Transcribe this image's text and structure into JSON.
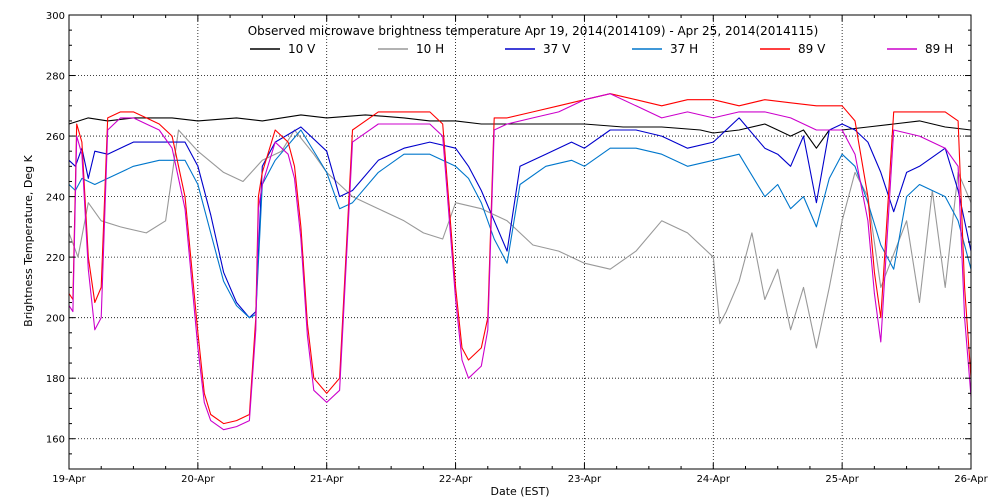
{
  "chart_data": {
    "type": "line",
    "title": "Observed microwave brightness temperature Apr 19, 2014(2014109) - Apr 25, 2014(2014115)",
    "xlabel": "Date (EST)",
    "ylabel": "Brightness Temperature, Deg K",
    "xlim": [
      0,
      7
    ],
    "ylim": [
      150,
      300
    ],
    "x_ticks": [
      {
        "x": 0,
        "label": "19-Apr"
      },
      {
        "x": 1,
        "label": "20-Apr"
      },
      {
        "x": 2,
        "label": "21-Apr"
      },
      {
        "x": 3,
        "label": "22-Apr"
      },
      {
        "x": 4,
        "label": "23-Apr"
      },
      {
        "x": 5,
        "label": "24-Apr"
      },
      {
        "x": 6,
        "label": "25-Apr"
      },
      {
        "x": 7,
        "label": "26-Apr"
      }
    ],
    "y_ticks": [
      160,
      180,
      200,
      220,
      240,
      260,
      280,
      300
    ],
    "grid": true,
    "legend": "top-center",
    "series": [
      {
        "name": "10 V",
        "color": "#000000",
        "x": [
          0,
          0.15,
          0.3,
          0.5,
          0.8,
          1.0,
          1.3,
          1.5,
          1.8,
          2.0,
          2.3,
          2.6,
          2.8,
          3.0,
          3.2,
          3.5,
          3.8,
          4.0,
          4.3,
          4.6,
          4.9,
          5.0,
          5.2,
          5.4,
          5.5,
          5.6,
          5.7,
          5.8,
          5.9,
          6.0,
          6.2,
          6.4,
          6.6,
          6.8,
          7.0
        ],
        "y": [
          264,
          266,
          265,
          266,
          266,
          265,
          266,
          265,
          267,
          266,
          267,
          266,
          265,
          265,
          264,
          264,
          264,
          264,
          263,
          263,
          262,
          261,
          262,
          264,
          262,
          260,
          262,
          256,
          262,
          262,
          263,
          264,
          265,
          263,
          262
        ]
      },
      {
        "name": "10 H",
        "color": "#999999",
        "x": [
          0,
          0.07,
          0.15,
          0.25,
          0.4,
          0.6,
          0.75,
          0.85,
          1.0,
          1.2,
          1.35,
          1.5,
          1.65,
          1.75,
          1.9,
          2.0,
          2.2,
          2.4,
          2.6,
          2.75,
          2.9,
          3.0,
          3.2,
          3.4,
          3.6,
          3.8,
          4.0,
          4.2,
          4.4,
          4.6,
          4.8,
          5.0,
          5.05,
          5.1,
          5.2,
          5.3,
          5.4,
          5.5,
          5.6,
          5.7,
          5.8,
          5.9,
          6.0,
          6.1,
          6.2,
          6.3,
          6.5,
          6.6,
          6.7,
          6.8,
          6.9,
          7.0
        ],
        "y": [
          228,
          220,
          238,
          232,
          230,
          228,
          232,
          262,
          255,
          248,
          245,
          252,
          255,
          262,
          254,
          248,
          240,
          236,
          232,
          228,
          226,
          238,
          236,
          232,
          224,
          222,
          218,
          216,
          222,
          232,
          228,
          220,
          198,
          202,
          212,
          228,
          206,
          216,
          196,
          210,
          190,
          210,
          232,
          248,
          240,
          210,
          232,
          205,
          242,
          210,
          248,
          238
        ]
      },
      {
        "name": "37 V",
        "color": "#0000cc",
        "x": [
          0,
          0.05,
          0.1,
          0.15,
          0.2,
          0.3,
          0.5,
          0.7,
          0.9,
          1.0,
          1.1,
          1.2,
          1.3,
          1.4,
          1.45,
          1.5,
          1.6,
          1.8,
          2.0,
          2.1,
          2.2,
          2.4,
          2.6,
          2.8,
          3.0,
          3.1,
          3.2,
          3.3,
          3.4,
          3.5,
          3.7,
          3.9,
          4.0,
          4.2,
          4.4,
          4.6,
          4.8,
          5.0,
          5.2,
          5.4,
          5.5,
          5.6,
          5.7,
          5.8,
          5.9,
          6.0,
          6.1,
          6.2,
          6.3,
          6.4,
          6.5,
          6.6,
          6.8,
          6.9,
          7.0
        ],
        "y": [
          252,
          250,
          256,
          246,
          255,
          254,
          258,
          258,
          258,
          250,
          234,
          215,
          205,
          200,
          202,
          250,
          258,
          263,
          255,
          240,
          242,
          252,
          256,
          258,
          256,
          250,
          242,
          232,
          222,
          250,
          254,
          258,
          256,
          262,
          262,
          260,
          256,
          258,
          266,
          256,
          254,
          250,
          260,
          238,
          262,
          264,
          262,
          258,
          248,
          235,
          248,
          250,
          256,
          242,
          222
        ]
      },
      {
        "name": "37 H",
        "color": "#0077cc",
        "x": [
          0,
          0.05,
          0.1,
          0.2,
          0.3,
          0.5,
          0.7,
          0.9,
          1.0,
          1.1,
          1.2,
          1.3,
          1.4,
          1.45,
          1.5,
          1.6,
          1.8,
          2.0,
          2.1,
          2.2,
          2.4,
          2.6,
          2.8,
          3.0,
          3.1,
          3.2,
          3.3,
          3.4,
          3.5,
          3.7,
          3.9,
          4.0,
          4.2,
          4.4,
          4.6,
          4.8,
          5.0,
          5.2,
          5.4,
          5.5,
          5.6,
          5.7,
          5.8,
          5.9,
          6.0,
          6.1,
          6.2,
          6.3,
          6.4,
          6.5,
          6.6,
          6.8,
          6.9,
          7.0
        ],
        "y": [
          244,
          242,
          246,
          244,
          246,
          250,
          252,
          252,
          244,
          228,
          212,
          204,
          200,
          201,
          244,
          252,
          262,
          248,
          236,
          238,
          248,
          254,
          254,
          250,
          246,
          238,
          226,
          218,
          244,
          250,
          252,
          250,
          256,
          256,
          254,
          250,
          252,
          254,
          240,
          244,
          236,
          240,
          230,
          246,
          254,
          250,
          238,
          224,
          216,
          240,
          244,
          240,
          232,
          216
        ]
      },
      {
        "name": "89 V",
        "color": "#ff0000",
        "x": [
          0,
          0.03,
          0.06,
          0.1,
          0.15,
          0.2,
          0.25,
          0.3,
          0.4,
          0.5,
          0.6,
          0.7,
          0.8,
          0.9,
          1.0,
          1.05,
          1.1,
          1.2,
          1.3,
          1.4,
          1.45,
          1.47,
          1.5,
          1.6,
          1.7,
          1.75,
          1.8,
          1.85,
          1.9,
          2.0,
          2.1,
          2.2,
          2.4,
          2.6,
          2.8,
          2.9,
          3.0,
          3.05,
          3.1,
          3.2,
          3.25,
          3.3,
          3.4,
          3.6,
          3.8,
          4.0,
          4.2,
          4.4,
          4.6,
          4.8,
          5.0,
          5.2,
          5.4,
          5.6,
          5.8,
          6.0,
          6.1,
          6.2,
          6.25,
          6.3,
          6.4,
          6.6,
          6.8,
          6.9,
          6.95,
          7.0
        ],
        "y": [
          208,
          206,
          264,
          258,
          220,
          205,
          210,
          266,
          268,
          268,
          266,
          264,
          260,
          240,
          195,
          175,
          168,
          165,
          166,
          168,
          200,
          240,
          248,
          262,
          258,
          250,
          230,
          198,
          180,
          175,
          180,
          262,
          268,
          268,
          268,
          264,
          210,
          190,
          186,
          190,
          200,
          266,
          266,
          268,
          270,
          272,
          274,
          272,
          270,
          272,
          272,
          270,
          272,
          271,
          270,
          270,
          265,
          240,
          215,
          200,
          268,
          268,
          268,
          265,
          210,
          180
        ]
      },
      {
        "name": "89 H",
        "color": "#cc00cc",
        "x": [
          0,
          0.03,
          0.06,
          0.1,
          0.15,
          0.2,
          0.25,
          0.3,
          0.4,
          0.5,
          0.6,
          0.7,
          0.8,
          0.9,
          1.0,
          1.05,
          1.1,
          1.2,
          1.3,
          1.4,
          1.45,
          1.47,
          1.5,
          1.6,
          1.7,
          1.75,
          1.8,
          1.85,
          1.9,
          2.0,
          2.1,
          2.2,
          2.4,
          2.6,
          2.8,
          2.9,
          3.0,
          3.05,
          3.1,
          3.2,
          3.25,
          3.3,
          3.4,
          3.6,
          3.8,
          4.0,
          4.2,
          4.4,
          4.6,
          4.8,
          5.0,
          5.2,
          5.4,
          5.6,
          5.8,
          6.0,
          6.1,
          6.2,
          6.25,
          6.3,
          6.4,
          6.6,
          6.8,
          6.9,
          6.95,
          7.0
        ],
        "y": [
          204,
          202,
          260,
          254,
          216,
          196,
          200,
          262,
          266,
          266,
          264,
          262,
          256,
          236,
          190,
          172,
          166,
          163,
          164,
          166,
          196,
          236,
          244,
          258,
          254,
          246,
          226,
          194,
          176,
          172,
          176,
          258,
          264,
          264,
          264,
          260,
          206,
          186,
          180,
          184,
          196,
          262,
          264,
          266,
          268,
          272,
          274,
          270,
          266,
          268,
          266,
          268,
          268,
          266,
          262,
          262,
          254,
          232,
          208,
          192,
          262,
          260,
          256,
          250,
          200,
          174
        ]
      }
    ]
  }
}
